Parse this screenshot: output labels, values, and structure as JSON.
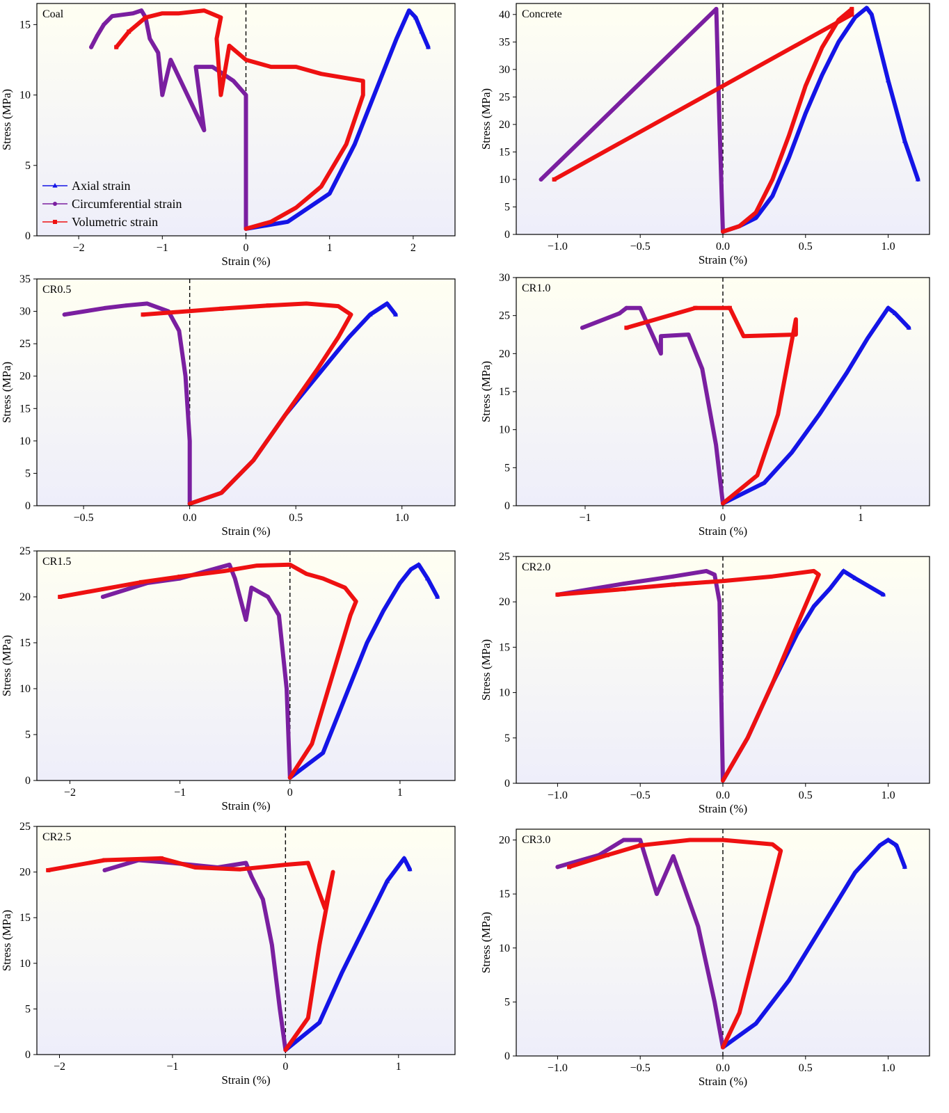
{
  "figure": {
    "legend": {
      "entries": [
        {
          "label": "Axial strain",
          "color": "#1414e6",
          "marker": "triangle"
        },
        {
          "label": "Circumferential strain",
          "color": "#7a1fa0",
          "marker": "circle"
        },
        {
          "label": "Volumetric strain",
          "color": "#ee1111",
          "marker": "square"
        }
      ]
    }
  },
  "chart_data": [
    {
      "type": "line",
      "panel_label": "Coal",
      "xlabel": "Strain (%)",
      "ylabel": "Stress (MPa)",
      "xlim": [
        -2.5,
        2.5
      ],
      "ylim": [
        0,
        16.5
      ],
      "xticks": [
        -2,
        -1,
        0,
        1,
        2
      ],
      "xtick_labels": [
        "−2",
        "−1",
        "0",
        "1",
        "2"
      ],
      "yticks": [
        0,
        5,
        10,
        15
      ],
      "ytick_labels": [
        "0",
        "5",
        "10",
        "15"
      ],
      "zero_line": true,
      "legend_position": "lower-left",
      "series": [
        {
          "name": "Axial strain",
          "color": "#1414e6",
          "marker": "triangle",
          "x": [
            0.0,
            0.5,
            1.0,
            1.3,
            1.6,
            1.8,
            1.95,
            2.03,
            2.1,
            2.18
          ],
          "y": [
            0.5,
            1.0,
            3.0,
            6.5,
            11.0,
            14.0,
            16.0,
            15.5,
            14.5,
            13.4
          ]
        },
        {
          "name": "Circumferential strain",
          "color": "#7a1fa0",
          "marker": "circle",
          "x": [
            0.0,
            0.0,
            -0.15,
            -0.4,
            -0.6,
            -0.5,
            -0.9,
            -1.0,
            -1.05,
            -1.15,
            -1.2,
            -1.25,
            -1.35,
            -1.6,
            -1.7,
            -1.78,
            -1.85
          ],
          "y": [
            0.5,
            10.0,
            11.0,
            12.0,
            12.0,
            7.5,
            12.5,
            10.0,
            13.0,
            14.0,
            15.5,
            16.0,
            15.8,
            15.6,
            15.0,
            14.2,
            13.4
          ]
        },
        {
          "name": "Volumetric strain",
          "color": "#ee1111",
          "marker": "square",
          "x": [
            0.0,
            0.3,
            0.6,
            0.9,
            1.2,
            1.4,
            1.4,
            0.9,
            0.6,
            0.3,
            0.0,
            -0.2,
            -0.3,
            -0.35,
            -0.3,
            -0.5,
            -0.8,
            -1.0,
            -1.2,
            -1.4,
            -1.55
          ],
          "y": [
            0.5,
            1.0,
            2.0,
            3.5,
            6.5,
            10.0,
            11.0,
            11.5,
            12.0,
            12.0,
            12.5,
            13.5,
            10.0,
            14.0,
            15.5,
            16.0,
            15.8,
            15.8,
            15.5,
            14.5,
            13.4
          ]
        }
      ]
    },
    {
      "type": "line",
      "panel_label": "Concrete",
      "xlabel": "Strain (%)",
      "ylabel": "Stress (MPa)",
      "xlim": [
        -1.25,
        1.25
      ],
      "ylim": [
        0,
        42
      ],
      "xticks": [
        -1.0,
        -0.5,
        0.0,
        0.5,
        1.0
      ],
      "xtick_labels": [
        "−1.0",
        "−0.5",
        "0.0",
        "0.5",
        "1.0"
      ],
      "yticks": [
        0,
        5,
        10,
        15,
        20,
        25,
        30,
        35,
        40
      ],
      "ytick_labels": [
        "0",
        "5",
        "10",
        "15",
        "20",
        "25",
        "30",
        "35",
        "40"
      ],
      "zero_line": true,
      "series": [
        {
          "name": "Axial strain",
          "color": "#1414e6",
          "marker": "triangle",
          "x": [
            0.0,
            0.1,
            0.2,
            0.3,
            0.4,
            0.5,
            0.6,
            0.7,
            0.8,
            0.87,
            0.9,
            1.0,
            1.1,
            1.18
          ],
          "y": [
            0.5,
            1.5,
            3.0,
            7.0,
            14.0,
            22.0,
            29.0,
            35.0,
            39.5,
            41.2,
            40.0,
            28.0,
            17.0,
            10.0
          ]
        },
        {
          "name": "Circumferential strain",
          "color": "#7a1fa0",
          "marker": "circle",
          "x": [
            0.0,
            -0.01,
            -0.02,
            -0.03,
            -0.04,
            -1.1
          ],
          "y": [
            0.5,
            10.0,
            20.0,
            30.0,
            41.0,
            10.0
          ]
        },
        {
          "name": "Volumetric strain",
          "color": "#ee1111",
          "marker": "square",
          "x": [
            0.0,
            0.1,
            0.2,
            0.3,
            0.4,
            0.5,
            0.6,
            0.7,
            0.78,
            0.78,
            -1.02
          ],
          "y": [
            0.5,
            1.5,
            4.0,
            10.0,
            18.0,
            27.0,
            34.0,
            39.0,
            41.0,
            40.0,
            10.0
          ]
        }
      ]
    },
    {
      "type": "line",
      "panel_label": "CR0.5",
      "xlabel": "Strain (%)",
      "ylabel": "Stress (MPa)",
      "xlim": [
        -0.72,
        1.25
      ],
      "ylim": [
        0,
        35
      ],
      "xticks": [
        -0.5,
        0.0,
        0.5,
        1.0
      ],
      "xtick_labels": [
        "−0.5",
        "0.0",
        "0.5",
        "1.0"
      ],
      "yticks": [
        0,
        5,
        10,
        15,
        20,
        25,
        30,
        35
      ],
      "ytick_labels": [
        "0",
        "5",
        "10",
        "15",
        "20",
        "25",
        "30",
        "35"
      ],
      "zero_line": true,
      "series": [
        {
          "name": "Axial strain",
          "color": "#1414e6",
          "marker": "triangle",
          "x": [
            0.0,
            0.15,
            0.3,
            0.45,
            0.6,
            0.75,
            0.85,
            0.93,
            0.97
          ],
          "y": [
            0.3,
            2.0,
            7.0,
            14.0,
            20.0,
            26.0,
            29.5,
            31.2,
            29.5
          ]
        },
        {
          "name": "Circumferential strain",
          "color": "#7a1fa0",
          "marker": "circle",
          "x": [
            0.0,
            0.0,
            -0.02,
            -0.05,
            -0.1,
            -0.2,
            -0.3,
            -0.4,
            -0.59
          ],
          "y": [
            0.3,
            10.0,
            20.0,
            27.0,
            30.0,
            31.2,
            30.9,
            30.5,
            29.5
          ]
        },
        {
          "name": "Volumetric strain",
          "color": "#ee1111",
          "marker": "square",
          "x": [
            0.0,
            0.15,
            0.3,
            0.45,
            0.6,
            0.7,
            0.76,
            0.7,
            0.55,
            0.37,
            0.15,
            -0.22
          ],
          "y": [
            0.3,
            2.0,
            7.0,
            14.0,
            21.0,
            26.0,
            29.5,
            30.8,
            31.2,
            30.9,
            30.4,
            29.5
          ]
        }
      ]
    },
    {
      "type": "line",
      "panel_label": "CR1.0",
      "xlabel": "Strain (%)",
      "ylabel": "Stress (MPa)",
      "xlim": [
        -1.5,
        1.5
      ],
      "ylim": [
        0,
        30
      ],
      "xticks": [
        -1,
        0,
        1
      ],
      "xtick_labels": [
        "−1",
        "0",
        "1"
      ],
      "yticks": [
        0,
        5,
        10,
        15,
        20,
        25,
        30
      ],
      "ytick_labels": [
        "0",
        "5",
        "10",
        "15",
        "20",
        "25",
        "30"
      ],
      "zero_line": true,
      "series": [
        {
          "name": "Axial strain",
          "color": "#1414e6",
          "marker": "triangle",
          "x": [
            0.0,
            0.3,
            0.5,
            0.7,
            0.9,
            1.05,
            1.2,
            1.25,
            1.35
          ],
          "y": [
            0.3,
            3.0,
            7.0,
            12.0,
            17.5,
            22.0,
            26.0,
            25.3,
            23.4
          ]
        },
        {
          "name": "Circumferential strain",
          "color": "#7a1fa0",
          "marker": "circle",
          "x": [
            0.0,
            -0.05,
            -0.15,
            -0.25,
            -0.45,
            -0.45,
            -0.6,
            -0.7,
            -0.75,
            -1.02
          ],
          "y": [
            0.3,
            8.0,
            18.0,
            22.5,
            22.3,
            20.0,
            26.0,
            26.0,
            25.3,
            23.4
          ]
        },
        {
          "name": "Volumetric strain",
          "color": "#ee1111",
          "marker": "square",
          "x": [
            0.0,
            0.25,
            0.4,
            0.53,
            0.53,
            0.15,
            0.05,
            -0.2,
            -0.7
          ],
          "y": [
            0.3,
            4.0,
            12.0,
            24.5,
            22.5,
            22.3,
            26.0,
            26.0,
            23.4
          ]
        }
      ]
    },
    {
      "type": "line",
      "panel_label": "CR1.5",
      "xlabel": "Strain (%)",
      "ylabel": "Stress (MPa)",
      "xlim": [
        -2.3,
        1.5
      ],
      "ylim": [
        0,
        25
      ],
      "xticks": [
        -2,
        -1,
        0,
        1
      ],
      "xtick_labels": [
        "−2",
        "−1",
        "0",
        "1"
      ],
      "yticks": [
        0,
        5,
        10,
        15,
        20,
        25
      ],
      "ytick_labels": [
        "0",
        "5",
        "10",
        "15",
        "20",
        "25"
      ],
      "zero_line": true,
      "series": [
        {
          "name": "Axial strain",
          "color": "#1414e6",
          "marker": "triangle",
          "x": [
            0.0,
            0.3,
            0.5,
            0.7,
            0.85,
            1.0,
            1.1,
            1.17,
            1.25,
            1.34
          ],
          "y": [
            0.3,
            3.0,
            9.0,
            15.0,
            18.5,
            21.5,
            23.0,
            23.5,
            22.0,
            20.0
          ]
        },
        {
          "name": "Circumferential strain",
          "color": "#7a1fa0",
          "marker": "circle",
          "x": [
            0.0,
            -0.03,
            -0.1,
            -0.2,
            -0.35,
            -0.4,
            -0.5,
            -0.55,
            -0.7,
            -1.0,
            -1.3,
            -1.7
          ],
          "y": [
            0.3,
            10.0,
            18.0,
            20.0,
            21.0,
            17.5,
            22.0,
            23.5,
            23.0,
            22.0,
            21.5,
            20.0
          ]
        },
        {
          "name": "Volumetric strain",
          "color": "#ee1111",
          "marker": "square",
          "x": [
            0.0,
            0.2,
            0.4,
            0.55,
            0.6,
            0.5,
            0.3,
            0.15,
            0.0,
            -0.3,
            -0.6,
            -1.0,
            -1.35,
            -2.09
          ],
          "y": [
            0.3,
            4.0,
            12.0,
            18.0,
            19.5,
            21.0,
            22.0,
            22.5,
            23.5,
            23.4,
            22.8,
            22.2,
            21.6,
            20.0
          ]
        }
      ]
    },
    {
      "type": "line",
      "panel_label": "CR2.0",
      "xlabel": "Strain (%)",
      "ylabel": "Stress (MPa)",
      "xlim": [
        -1.25,
        1.25
      ],
      "ylim": [
        0,
        25
      ],
      "xticks": [
        -1.0,
        -0.5,
        0.0,
        0.5,
        1.0
      ],
      "xtick_labels": [
        "−1.0",
        "−0.5",
        "0.0",
        "0.5",
        "1.0"
      ],
      "yticks": [
        0,
        5,
        10,
        15,
        20,
        25
      ],
      "ytick_labels": [
        "0",
        "5",
        "10",
        "15",
        "20",
        "25"
      ],
      "zero_line": true,
      "series": [
        {
          "name": "Axial strain",
          "color": "#1414e6",
          "marker": "triangle",
          "x": [
            0.0,
            0.15,
            0.3,
            0.45,
            0.55,
            0.65,
            0.73,
            0.8,
            0.97
          ],
          "y": [
            0.3,
            5.0,
            11.0,
            16.5,
            19.5,
            21.5,
            23.4,
            22.6,
            20.8
          ]
        },
        {
          "name": "Circumferential strain",
          "color": "#7a1fa0",
          "marker": "circle",
          "x": [
            0.0,
            -0.01,
            -0.02,
            -0.05,
            -0.1,
            -0.3,
            -0.6,
            -1.0
          ],
          "y": [
            0.3,
            10.0,
            20.0,
            23.0,
            23.4,
            22.8,
            22.0,
            20.8
          ]
        },
        {
          "name": "Volumetric strain",
          "color": "#ee1111",
          "marker": "square",
          "x": [
            0.0,
            0.15,
            0.3,
            0.45,
            0.58,
            0.55,
            0.3,
            0.0,
            -0.3,
            -0.6,
            -1.0
          ],
          "y": [
            0.3,
            5.0,
            11.0,
            17.5,
            23.0,
            23.4,
            22.8,
            22.3,
            21.9,
            21.4,
            20.8
          ]
        }
      ]
    },
    {
      "type": "line",
      "panel_label": "CR2.5",
      "xlabel": "Strain (%)",
      "ylabel": "Stress (MPa)",
      "xlim": [
        -2.2,
        1.5
      ],
      "ylim": [
        0,
        25
      ],
      "xticks": [
        -2,
        -1,
        0,
        1
      ],
      "xtick_labels": [
        "−2",
        "−1",
        "0",
        "1"
      ],
      "yticks": [
        0,
        5,
        10,
        15,
        20,
        25
      ],
      "ytick_labels": [
        "0",
        "5",
        "10",
        "15",
        "20",
        "25"
      ],
      "zero_line": true,
      "series": [
        {
          "name": "Axial strain",
          "color": "#1414e6",
          "marker": "triangle",
          "x": [
            0.0,
            0.3,
            0.5,
            0.7,
            0.9,
            1.05,
            1.1
          ],
          "y": [
            0.5,
            3.5,
            9.0,
            14.0,
            19.0,
            21.5,
            20.3
          ]
        },
        {
          "name": "Circumferential strain",
          "color": "#7a1fa0",
          "marker": "circle",
          "x": [
            0.0,
            -0.05,
            -0.12,
            -0.2,
            -0.3,
            -0.35,
            -0.6,
            -1.0,
            -1.3,
            -1.6
          ],
          "y": [
            0.5,
            5.0,
            12.0,
            17.0,
            19.5,
            21.0,
            20.5,
            21.0,
            21.3,
            20.2
          ]
        },
        {
          "name": "Volumetric strain",
          "color": "#ee1111",
          "marker": "square",
          "x": [
            0.0,
            0.2,
            0.3,
            0.42,
            0.35,
            0.2,
            0.0,
            -0.4,
            -0.8,
            -1.1,
            -1.6,
            -2.1
          ],
          "y": [
            0.5,
            4.0,
            12.0,
            20.0,
            16.0,
            21.0,
            20.8,
            20.3,
            20.5,
            21.5,
            21.3,
            20.2
          ]
        }
      ]
    },
    {
      "type": "line",
      "panel_label": "CR3.0",
      "xlabel": "Strain (%)",
      "ylabel": "Stress (MPa)",
      "xlim": [
        -1.25,
        1.25
      ],
      "ylim": [
        0,
        21
      ],
      "xticks": [
        -1.0,
        -0.5,
        0.0,
        0.5,
        1.0
      ],
      "xtick_labels": [
        "−1.0",
        "−0.5",
        "0.0",
        "0.5",
        "1.0"
      ],
      "yticks": [
        0,
        5,
        10,
        15,
        20
      ],
      "ytick_labels": [
        "0",
        "5",
        "10",
        "15",
        "20"
      ],
      "zero_line": true,
      "series": [
        {
          "name": "Axial strain",
          "color": "#1414e6",
          "marker": "triangle",
          "x": [
            0.0,
            0.2,
            0.4,
            0.6,
            0.8,
            0.95,
            1.0,
            1.05,
            1.1
          ],
          "y": [
            0.8,
            3.0,
            7.0,
            12.0,
            17.0,
            19.5,
            20.0,
            19.5,
            17.5
          ]
        },
        {
          "name": "Circumferential strain",
          "color": "#7a1fa0",
          "marker": "circle",
          "x": [
            0.0,
            -0.05,
            -0.15,
            -0.3,
            -0.4,
            -0.5,
            -0.6,
            -0.75,
            -1.0
          ],
          "y": [
            0.8,
            5.0,
            12.0,
            18.5,
            15.0,
            20.0,
            20.0,
            18.6,
            17.5
          ]
        },
        {
          "name": "Volumetric strain",
          "color": "#ee1111",
          "marker": "square",
          "x": [
            0.0,
            0.1,
            0.2,
            0.3,
            0.35,
            0.3,
            0.0,
            -0.2,
            -0.5,
            -0.7,
            -0.93
          ],
          "y": [
            0.8,
            4.0,
            10.0,
            16.0,
            19.0,
            19.6,
            20.0,
            20.0,
            19.5,
            18.6,
            17.5
          ]
        }
      ]
    }
  ]
}
